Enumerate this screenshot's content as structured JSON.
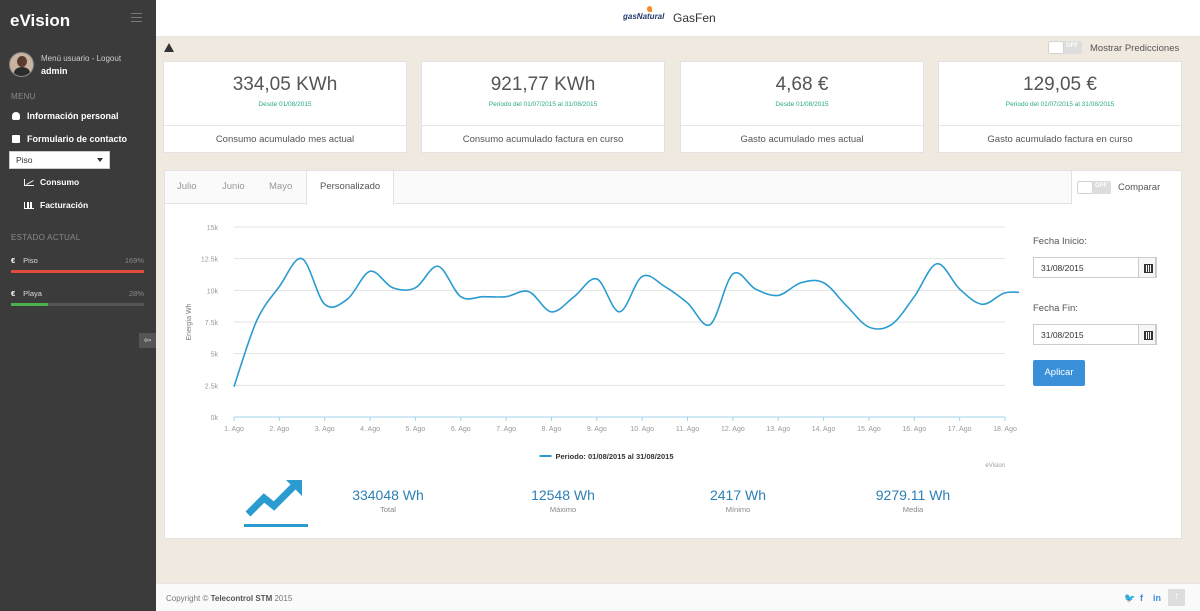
{
  "app": {
    "brand": "eVision",
    "title": "GasFen",
    "logo_text": "gasNatural"
  },
  "user": {
    "menu_link": "Menú usuario - Logout",
    "name": "admin"
  },
  "sidebar": {
    "menu_label": "MENU",
    "items": [
      {
        "label": "Información personal",
        "icon": "user-icon"
      },
      {
        "label": "Formulario de contacto",
        "icon": "envelope-icon"
      }
    ],
    "property_select": {
      "value": "Piso"
    },
    "sub_items": [
      {
        "label": "Consumo",
        "icon": "line-chart-icon"
      },
      {
        "label": "Facturación",
        "icon": "bar-chart-icon"
      }
    ],
    "state_label": "ESTADO ACTUAL",
    "state": [
      {
        "label": "Piso",
        "percent_text": "169%",
        "fill": 1.0,
        "color": "#e04b3f"
      },
      {
        "label": "Playa",
        "percent_text": "28%",
        "fill": 0.28,
        "color": "#4caf50"
      }
    ]
  },
  "toolbar": {
    "predictions_toggle": "OFF",
    "predictions_label": "Mostrar Predicciones"
  },
  "kpis": [
    {
      "value": "334,05 KWh",
      "sub": "Desde 01/08/2015",
      "label": "Consumo acumulado mes actual"
    },
    {
      "value": "921,77 KWh",
      "sub": "Periodo del 01/07/2015 al 31/08/2015",
      "label": "Consumo acumulado factura en curso"
    },
    {
      "value": "4,68 €",
      "sub": "Desde 01/08/2015",
      "label": "Gasto acumulado mes actual"
    },
    {
      "value": "129,05 €",
      "sub": "Periodo del 01/07/2015 al 31/08/2015",
      "label": "Gasto acumulado factura en curso"
    }
  ],
  "tabs": [
    "Julio",
    "Junio",
    "Mayo",
    "Personalizado"
  ],
  "compare": {
    "toggle": "OFF",
    "label": "Comparar"
  },
  "date_form": {
    "start_label": "Fecha Inicio:",
    "start_value": "31/08/2015",
    "end_label": "Fecha Fin:",
    "end_value": "31/08/2015",
    "apply": "Aplicar"
  },
  "chart_data": {
    "type": "line",
    "ylabel": "Energía Wh",
    "ylim": [
      0,
      15000
    ],
    "yticks": [
      0,
      2500,
      5000,
      7500,
      10000,
      12500,
      15000
    ],
    "ytick_labels": [
      "0k",
      "2.5k",
      "5k",
      "7.5k",
      "10k",
      "12.5k",
      "15k"
    ],
    "xtick_labels": [
      "1. Ago",
      "2. Ago",
      "3. Ago",
      "4. Ago",
      "5. Ago",
      "6. Ago",
      "7. Ago",
      "8. Ago",
      "9. Ago",
      "10. Ago",
      "11. Ago",
      "12. Ago",
      "13. Ago",
      "14. Ago",
      "15. Ago",
      "16. Ago",
      "17. Ago",
      "18. Ago"
    ],
    "grid": true,
    "legend_position": "bottom-center",
    "credit": "eVision",
    "series": [
      {
        "name": "Periodo: 01/08/2015 al 31/08/2015",
        "color": "#2b9bd0",
        "x": [
          0,
          0.5,
          1,
          1.5,
          2.0,
          2.5,
          3,
          3.5,
          4,
          4.5,
          5,
          5.5,
          6,
          6.5,
          7,
          7.5,
          8,
          8.5,
          9,
          9.5,
          10,
          10.5,
          11,
          11.5,
          12,
          12.5,
          13,
          13.5,
          14,
          14.5,
          15,
          15.5,
          16,
          16.5,
          17,
          17.5,
          18
        ],
        "values": [
          2400,
          7600,
          10300,
          12500,
          8900,
          9300,
          11500,
          10200,
          10200,
          11900,
          9500,
          9500,
          9500,
          9900,
          8300,
          9500,
          10900,
          8300,
          11100,
          10300,
          9000,
          7300,
          11300,
          10100,
          9600,
          10600,
          10600,
          8800,
          7100,
          7300,
          9500,
          12100,
          10100,
          8900,
          9800,
          9800,
          9800
        ]
      }
    ]
  },
  "stats": [
    {
      "value": "334048 Wh",
      "label": "Total"
    },
    {
      "value": "12548 Wh",
      "label": "Máximo"
    },
    {
      "value": "2417 Wh",
      "label": "Mínimo"
    },
    {
      "value": "9279.11 Wh",
      "label": "Media"
    }
  ],
  "footer": {
    "copyright_prefix": "Copyright ©",
    "company": "Telecontrol STM",
    "year": "2015",
    "social": [
      "twitter-icon",
      "facebook-icon",
      "linkedin-icon"
    ]
  }
}
